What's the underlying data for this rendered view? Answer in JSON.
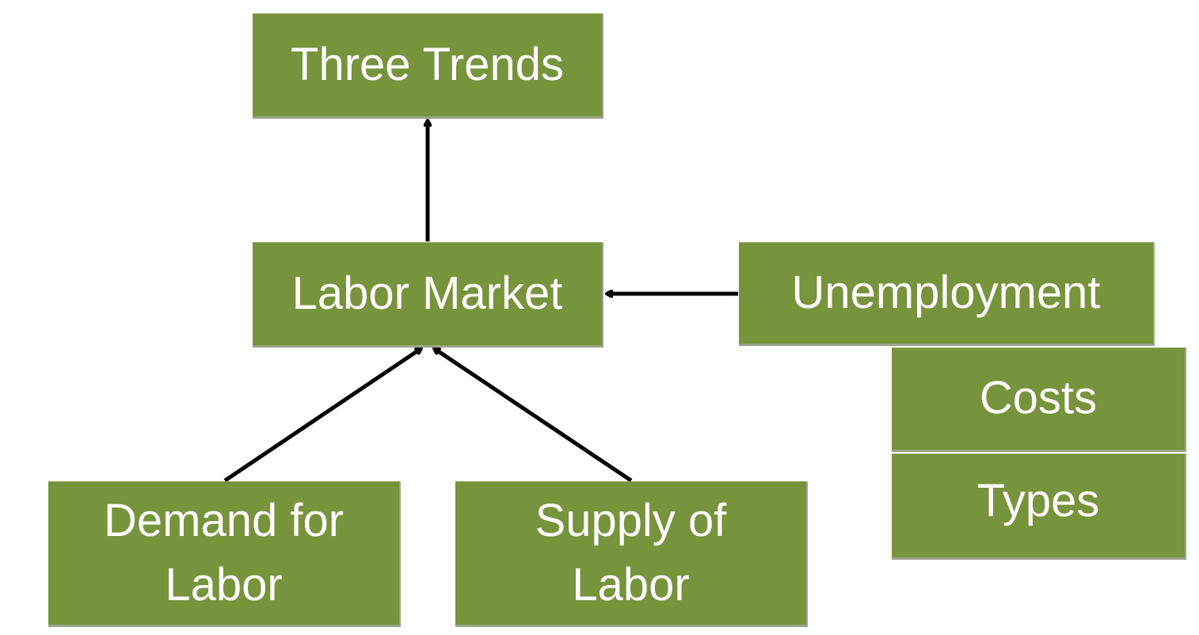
{
  "colors": {
    "box_fill": "#77933c",
    "box_text": "#ffffff",
    "arrow": "#000000",
    "background": "#ffffff"
  },
  "nodes": {
    "three_trends": "Three Trends",
    "labor_market": "Labor Market",
    "unemployment": "Unemployment",
    "costs": "Costs",
    "types": "Types",
    "demand_for_labor": "Demand for\nLabor",
    "supply_of_labor": "Supply of\nLabor"
  },
  "edges": [
    {
      "from": "labor_market",
      "to": "three_trends"
    },
    {
      "from": "unemployment",
      "to": "labor_market"
    },
    {
      "from": "demand_for_labor",
      "to": "labor_market"
    },
    {
      "from": "supply_of_labor",
      "to": "labor_market"
    }
  ]
}
